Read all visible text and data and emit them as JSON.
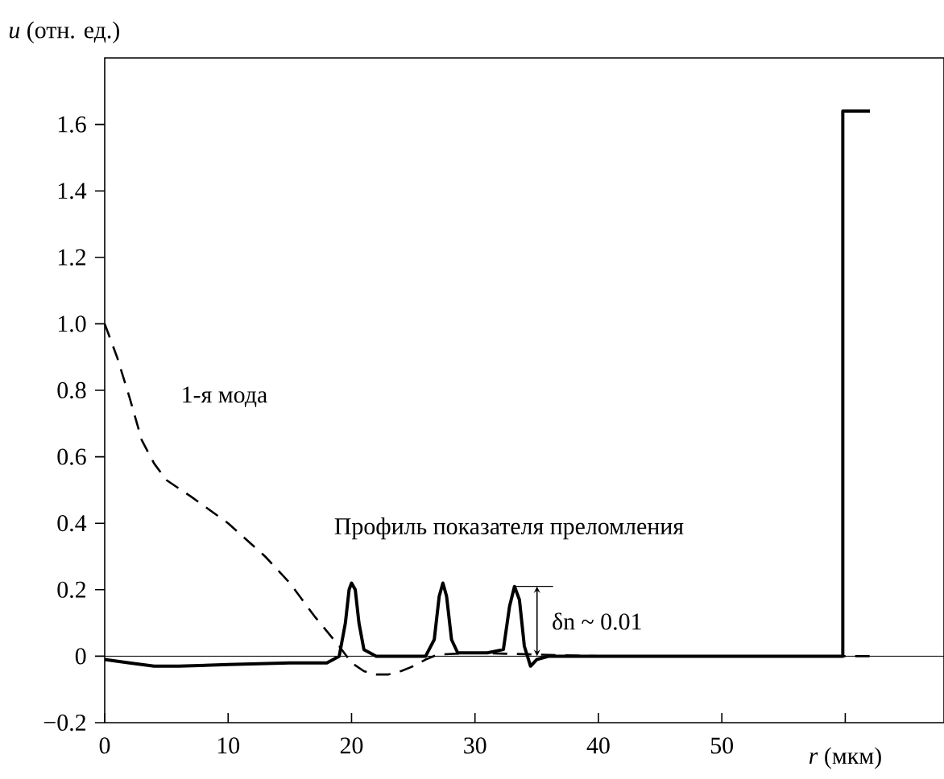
{
  "chart_data": {
    "type": "line",
    "xlabel": "*r* (мкм)",
    "ylabel": "*u* (отн. ед.)",
    "xlim": [
      0,
      68
    ],
    "ylim": [
      -0.2,
      1.8
    ],
    "xticks": [
      0,
      10,
      20,
      30,
      40,
      50,
      {
        "value": 60,
        "label": null
      }
    ],
    "yticks": [
      {
        "value": -0.2,
        "label": "−0.2"
      },
      0,
      0.2,
      0.4,
      0.6,
      0.8,
      {
        "value": 1,
        "label": "1.0"
      },
      1.2,
      1.4,
      1.6
    ],
    "grid": false,
    "ref_lines": [
      {
        "axis": "y",
        "value": 0,
        "label": null
      }
    ],
    "annotations": [
      "1-я мода",
      {
        "text": "Профиль показателя преломления",
        "x": 20,
        "y": 0.22
      },
      {
        "text": "δn ~ 0.01",
        "x": 33.2,
        "y": 0.21
      }
    ],
    "series": [
      {
        "color": "#000000",
        "line_style": "dashed",
        "x": [
          0,
          1,
          2,
          3,
          4,
          5,
          7,
          10,
          13,
          15,
          17,
          19,
          20,
          21,
          22,
          23,
          24,
          25,
          26,
          27,
          30,
          40,
          50,
          57,
          62
        ],
        "values": [
          1.0,
          0.9,
          0.78,
          0.65,
          0.58,
          0.53,
          0.48,
          0.4,
          0.3,
          0.22,
          0.12,
          0.03,
          -0.02,
          -0.045,
          -0.055,
          -0.055,
          -0.045,
          -0.03,
          -0.01,
          0.005,
          0.01,
          0,
          0,
          0,
          0
        ]
      },
      {
        "color": "#000000",
        "line_style": "solid",
        "x": [
          0,
          2,
          4,
          6,
          10,
          15,
          18,
          19,
          19.5,
          19.8,
          20,
          20.3,
          20.6,
          21,
          22,
          26,
          26.7,
          27.1,
          27.4,
          27.7,
          28.1,
          28.6,
          30,
          31,
          32.3,
          32.8,
          33.2,
          33.6,
          34,
          34.5,
          35,
          36,
          59.8,
          59.8,
          62
        ],
        "values": [
          -0.01,
          -0.02,
          -0.03,
          -0.03,
          -0.025,
          -0.02,
          -0.02,
          0,
          0.1,
          0.2,
          0.22,
          0.2,
          0.1,
          0.02,
          0,
          0,
          0.05,
          0.18,
          0.22,
          0.18,
          0.05,
          0.01,
          0.01,
          0.01,
          0.02,
          0.15,
          0.21,
          0.17,
          0.03,
          -0.03,
          -0.01,
          0,
          0,
          1.64,
          1.64
        ]
      }
    ]
  }
}
